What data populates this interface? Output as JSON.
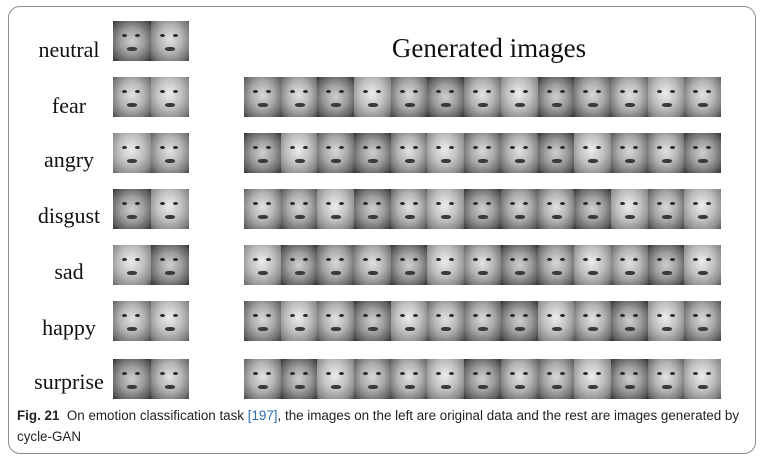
{
  "figure": {
    "generated_title": "Generated images",
    "rows": [
      {
        "label": "neutral",
        "originals": 2,
        "generated": 0
      },
      {
        "label": "fear",
        "originals": 2,
        "generated": 13
      },
      {
        "label": "angry",
        "originals": 2,
        "generated": 13
      },
      {
        "label": "disgust",
        "originals": 2,
        "generated": 13
      },
      {
        "label": "sad",
        "originals": 2,
        "generated": 13
      },
      {
        "label": "happy",
        "originals": 2,
        "generated": 13
      },
      {
        "label": "surprise",
        "originals": 2,
        "generated": 13
      }
    ]
  },
  "caption": {
    "fig_label": "Fig. 21",
    "text_before_ref": "On emotion classification task ",
    "ref": "[197]",
    "text_after_ref": ", the images on the left are original data and the rest are images generated by cycle-GAN"
  }
}
